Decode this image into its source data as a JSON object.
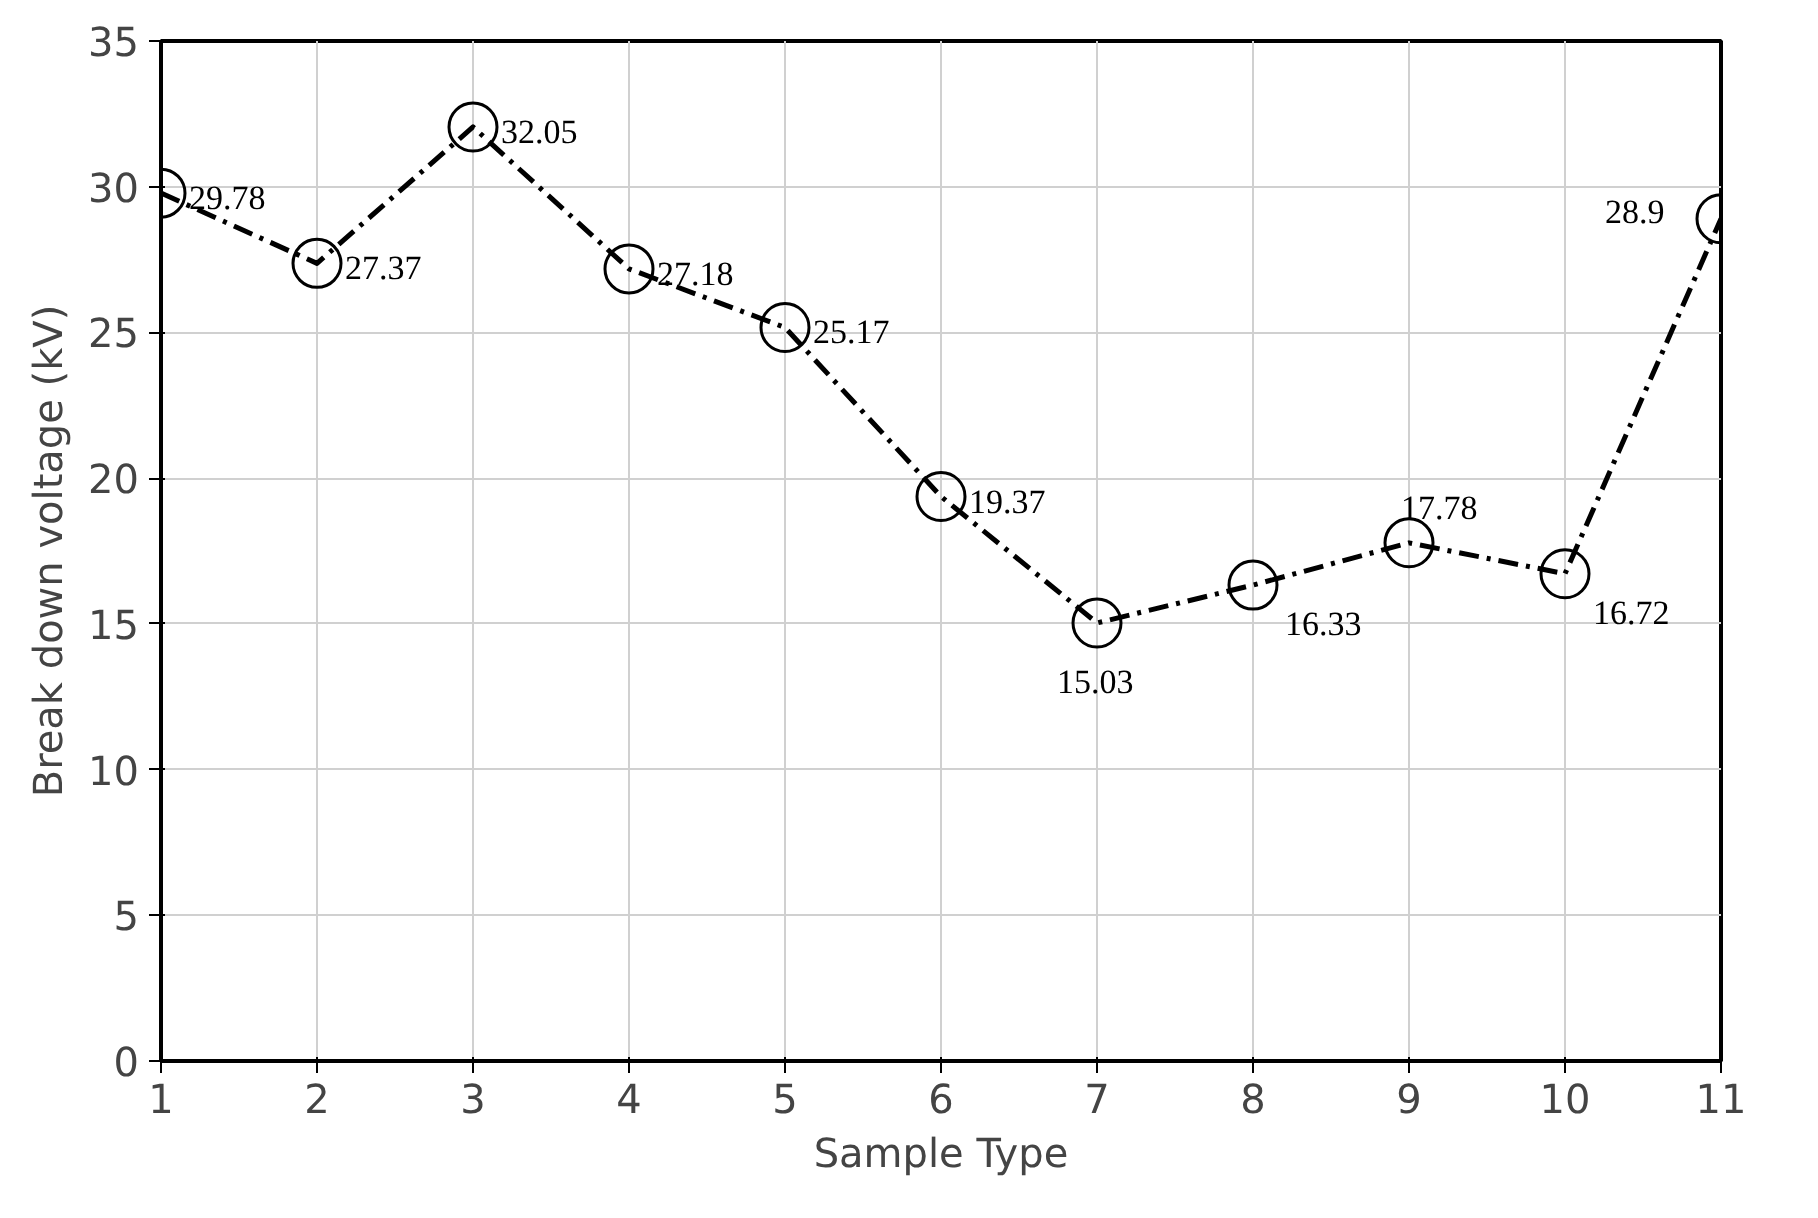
{
  "chart_data": {
    "type": "line",
    "xlabel": "Sample Type",
    "ylabel": "Break down voltage (kV)",
    "x": [
      1,
      2,
      3,
      4,
      5,
      6,
      7,
      8,
      9,
      10,
      11
    ],
    "values": [
      29.78,
      27.37,
      32.05,
      27.18,
      25.17,
      19.37,
      15.03,
      16.33,
      17.78,
      16.72,
      28.9
    ],
    "color": "#000000",
    "marker": "circle",
    "line_style": "dashed",
    "data_labels": true,
    "grid": true,
    "xlim": [
      1,
      11
    ],
    "xticks": [
      1,
      2,
      3,
      4,
      5,
      6,
      7,
      8,
      9,
      10,
      11
    ],
    "ylim": [
      0,
      35
    ],
    "yticks": [
      0,
      5,
      10,
      15,
      20,
      25,
      30,
      35
    ]
  }
}
